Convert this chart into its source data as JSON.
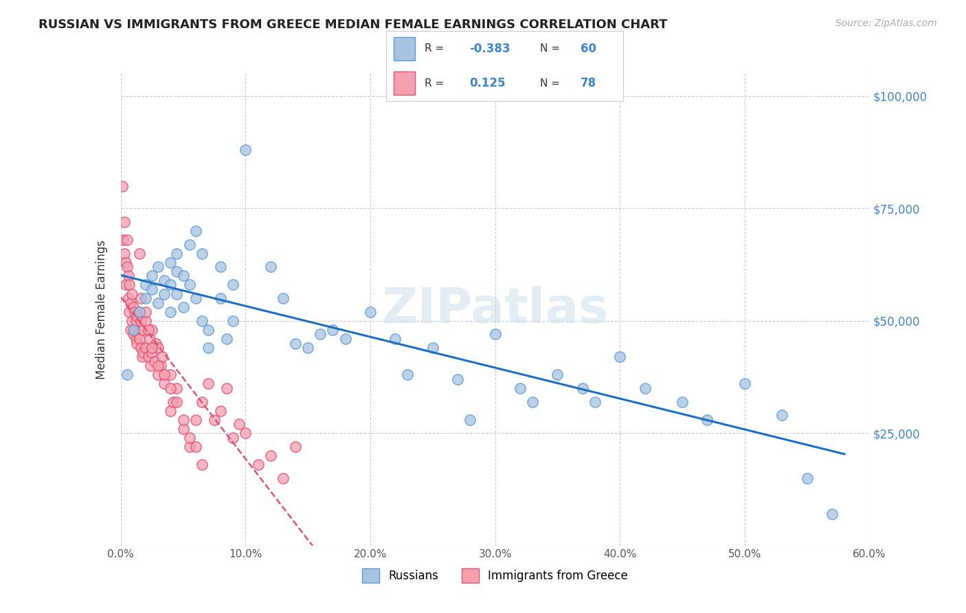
{
  "title": "RUSSIAN VS IMMIGRANTS FROM GREECE MEDIAN FEMALE EARNINGS CORRELATION CHART",
  "source": "Source: ZipAtlas.com",
  "ylabel": "Median Female Earnings",
  "y_ticks": [
    0,
    25000,
    50000,
    75000,
    100000
  ],
  "y_tick_labels": [
    "",
    "$25,000",
    "$50,000",
    "$75,000",
    "$100,000"
  ],
  "x_tick_labels": [
    "0.0%",
    "10.0%",
    "20.0%",
    "30.0%",
    "40.0%",
    "50.0%",
    "60.0%"
  ],
  "x_ticks": [
    0.0,
    0.1,
    0.2,
    0.3,
    0.4,
    0.5,
    0.6
  ],
  "xlim": [
    0.0,
    0.6
  ],
  "ylim": [
    0,
    105000
  ],
  "legend_R_blue": "-0.383",
  "legend_N_blue": "60",
  "legend_R_pink": "0.125",
  "legend_N_pink": "78",
  "color_blue": "#a8c4e0",
  "color_pink": "#f4a0b0",
  "edge_blue": "#5b9bd5",
  "edge_pink": "#e05070",
  "line_blue": "#1a6fc4",
  "line_pink": "#e05070",
  "watermark": "ZIPatlas",
  "blue_scatter_x": [
    0.005,
    0.01,
    0.015,
    0.02,
    0.02,
    0.025,
    0.025,
    0.03,
    0.03,
    0.035,
    0.035,
    0.04,
    0.04,
    0.04,
    0.045,
    0.045,
    0.045,
    0.05,
    0.05,
    0.055,
    0.055,
    0.06,
    0.06,
    0.065,
    0.065,
    0.07,
    0.07,
    0.08,
    0.08,
    0.085,
    0.09,
    0.09,
    0.1,
    0.12,
    0.13,
    0.14,
    0.15,
    0.16,
    0.17,
    0.18,
    0.2,
    0.22,
    0.23,
    0.25,
    0.27,
    0.28,
    0.3,
    0.32,
    0.33,
    0.35,
    0.37,
    0.38,
    0.4,
    0.42,
    0.45,
    0.47,
    0.5,
    0.53,
    0.55,
    0.57
  ],
  "blue_scatter_y": [
    38000,
    48000,
    52000,
    55000,
    58000,
    60000,
    57000,
    54000,
    62000,
    59000,
    56000,
    63000,
    58000,
    52000,
    65000,
    61000,
    56000,
    60000,
    53000,
    67000,
    58000,
    70000,
    55000,
    65000,
    50000,
    48000,
    44000,
    62000,
    55000,
    46000,
    50000,
    58000,
    88000,
    62000,
    55000,
    45000,
    44000,
    47000,
    48000,
    46000,
    52000,
    46000,
    38000,
    44000,
    37000,
    28000,
    47000,
    35000,
    32000,
    38000,
    35000,
    32000,
    42000,
    35000,
    32000,
    28000,
    36000,
    29000,
    15000,
    7000
  ],
  "pink_scatter_x": [
    0.001,
    0.002,
    0.003,
    0.003,
    0.004,
    0.004,
    0.005,
    0.005,
    0.006,
    0.006,
    0.007,
    0.007,
    0.008,
    0.008,
    0.009,
    0.009,
    0.01,
    0.01,
    0.011,
    0.011,
    0.012,
    0.012,
    0.013,
    0.013,
    0.014,
    0.015,
    0.015,
    0.016,
    0.016,
    0.017,
    0.018,
    0.018,
    0.02,
    0.02,
    0.022,
    0.023,
    0.024,
    0.025,
    0.025,
    0.027,
    0.028,
    0.03,
    0.03,
    0.032,
    0.033,
    0.035,
    0.04,
    0.04,
    0.042,
    0.045,
    0.05,
    0.055,
    0.06,
    0.065,
    0.07,
    0.075,
    0.08,
    0.085,
    0.09,
    0.095,
    0.1,
    0.11,
    0.12,
    0.13,
    0.14,
    0.015,
    0.016,
    0.02,
    0.022,
    0.025,
    0.03,
    0.035,
    0.04,
    0.045,
    0.05,
    0.055,
    0.06,
    0.065
  ],
  "pink_scatter_y": [
    80000,
    68000,
    65000,
    72000,
    58000,
    63000,
    62000,
    68000,
    55000,
    60000,
    52000,
    58000,
    48000,
    54000,
    50000,
    56000,
    47000,
    53000,
    48000,
    52000,
    46000,
    50000,
    45000,
    51000,
    47000,
    46000,
    52000,
    44000,
    50000,
    42000,
    43000,
    48000,
    44000,
    50000,
    42000,
    46000,
    40000,
    43000,
    48000,
    41000,
    45000,
    38000,
    44000,
    40000,
    42000,
    36000,
    30000,
    38000,
    32000,
    35000,
    26000,
    22000,
    28000,
    32000,
    36000,
    28000,
    30000,
    35000,
    24000,
    27000,
    25000,
    18000,
    20000,
    15000,
    22000,
    65000,
    55000,
    52000,
    48000,
    44000,
    40000,
    38000,
    35000,
    32000,
    28000,
    24000,
    22000,
    18000
  ]
}
